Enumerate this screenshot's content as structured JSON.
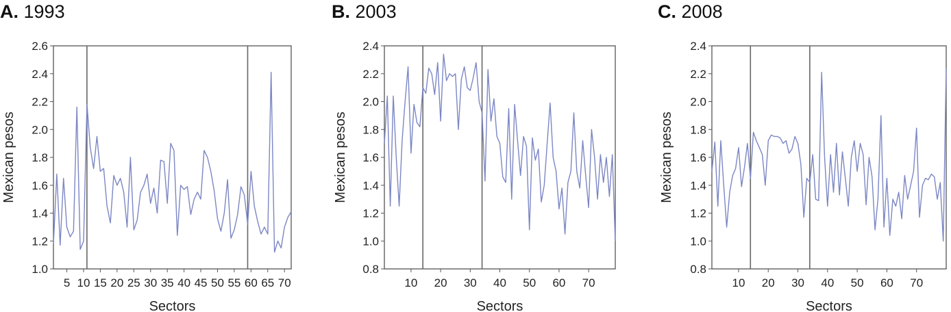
{
  "colors": {
    "series": "#7b86c4",
    "frame": "#555555",
    "divider": "#666666"
  },
  "chart_data": [
    {
      "type": "line",
      "letter": "A.",
      "title": "1993",
      "xlabel": "Sectors",
      "ylabel": "Mexican pesos",
      "xlim": [
        1,
        72
      ],
      "ylim": [
        1.0,
        2.6
      ],
      "yticks": [
        1.0,
        1.2,
        1.4,
        1.6,
        1.8,
        2.0,
        2.2,
        2.4,
        2.6
      ],
      "ytick_labels": [
        "1.0",
        "1.2",
        "1.4",
        "1.6",
        "1.8",
        "2.0",
        "2.2",
        "2.4",
        "2.6"
      ],
      "xticks": [
        5,
        10,
        15,
        20,
        25,
        30,
        35,
        40,
        45,
        50,
        55,
        60,
        65,
        70
      ],
      "xtick_labels": [
        "5",
        "10",
        "15",
        "20",
        "25",
        "30",
        "35",
        "40",
        "45",
        "50",
        "55",
        "60",
        "65",
        "70"
      ],
      "vlines": [
        11,
        59
      ],
      "grid": false,
      "series": [
        {
          "values": [
            1.18,
            1.68,
            1.17,
            1.65,
            1.3,
            1.23,
            1.27,
            2.16,
            1.14,
            1.2,
            2.18,
            1.87,
            1.72,
            1.95,
            1.7,
            1.72,
            1.45,
            1.33,
            1.67,
            1.6,
            1.65,
            1.55,
            1.3,
            1.8,
            1.28,
            1.35,
            1.55,
            1.6,
            1.68,
            1.47,
            1.58,
            1.4,
            1.78,
            1.77,
            1.47,
            1.9,
            1.85,
            1.24,
            1.6,
            1.57,
            1.59,
            1.39,
            1.5,
            1.55,
            1.5,
            1.85,
            1.8,
            1.7,
            1.56,
            1.36,
            1.27,
            1.4,
            1.64,
            1.22,
            1.28,
            1.39,
            1.59,
            1.53,
            1.32,
            1.7,
            1.45,
            1.34,
            1.25,
            1.3,
            1.25,
            2.41,
            1.12,
            1.2,
            1.15,
            1.3,
            1.37,
            1.41
          ]
        }
      ]
    },
    {
      "type": "line",
      "letter": "B.",
      "title": "2003",
      "xlabel": "Sectors",
      "ylabel": "Mexican pesos",
      "xlim": [
        1,
        79
      ],
      "ylim": [
        0.8,
        2.4
      ],
      "yticks": [
        0.8,
        1.0,
        1.2,
        1.4,
        1.6,
        1.8,
        2.0,
        2.2,
        2.4
      ],
      "ytick_labels": [
        "0.8",
        "1.0",
        "1.2",
        "1.4",
        "1.6",
        "1.8",
        "2.0",
        "2.2",
        "2.4"
      ],
      "xticks": [
        10,
        20,
        30,
        40,
        50,
        60,
        70
      ],
      "xtick_labels": [
        "10",
        "20",
        "30",
        "40",
        "50",
        "60",
        "70"
      ],
      "vlines": [
        14,
        34
      ],
      "grid": false,
      "series": [
        {
          "values": [
            1.7,
            2.04,
            1.25,
            2.04,
            1.6,
            1.25,
            1.72,
            2.0,
            2.25,
            1.63,
            1.98,
            1.85,
            1.82,
            2.1,
            2.06,
            2.24,
            2.2,
            2.05,
            2.28,
            1.86,
            2.34,
            2.15,
            2.2,
            2.18,
            2.2,
            1.8,
            2.16,
            2.25,
            2.1,
            2.08,
            2.17,
            2.28,
            2.0,
            1.92,
            1.43,
            2.23,
            1.86,
            2.02,
            1.75,
            1.7,
            1.46,
            1.42,
            1.95,
            1.3,
            1.98,
            1.72,
            1.47,
            1.75,
            1.68,
            1.08,
            1.74,
            1.58,
            1.66,
            1.28,
            1.4,
            1.7,
            1.99,
            1.6,
            1.5,
            1.23,
            1.38,
            1.05,
            1.42,
            1.5,
            1.92,
            1.5,
            1.38,
            1.72,
            1.47,
            1.24,
            1.8,
            1.6,
            1.3,
            1.62,
            1.42,
            1.6,
            1.32,
            1.62,
            1.0
          ]
        }
      ]
    },
    {
      "type": "line",
      "letter": "C.",
      "title": "2008",
      "xlabel": "Sectors",
      "ylabel": "Mexican pesos",
      "xlim": [
        1,
        80
      ],
      "ylim": [
        0.8,
        2.4
      ],
      "yticks": [
        0.8,
        1.0,
        1.2,
        1.4,
        1.6,
        1.8,
        2.0,
        2.2,
        2.4
      ],
      "ytick_labels": [
        "0.8",
        "1.0",
        "1.2",
        "1.4",
        "1.6",
        "1.8",
        "2.0",
        "2.2",
        "2.4"
      ],
      "xticks": [
        10,
        20,
        30,
        40,
        50,
        60,
        70
      ],
      "xtick_labels": [
        "10",
        "20",
        "30",
        "40",
        "50",
        "60",
        "70"
      ],
      "vlines": [
        14,
        34
      ],
      "grid": false,
      "series": [
        {
          "values": [
            1.5,
            1.71,
            1.25,
            1.72,
            1.4,
            1.1,
            1.35,
            1.47,
            1.52,
            1.67,
            1.39,
            1.53,
            1.7,
            1.45,
            1.78,
            1.72,
            1.67,
            1.62,
            1.4,
            1.72,
            1.76,
            1.75,
            1.75,
            1.74,
            1.7,
            1.72,
            1.63,
            1.66,
            1.75,
            1.7,
            1.55,
            1.17,
            1.45,
            1.42,
            1.62,
            1.3,
            1.29,
            2.21,
            1.6,
            1.25,
            1.62,
            1.35,
            1.7,
            1.33,
            1.64,
            1.45,
            1.25,
            1.6,
            1.72,
            1.5,
            1.7,
            1.62,
            1.26,
            1.6,
            1.46,
            1.08,
            1.3,
            1.9,
            1.1,
            1.45,
            1.04,
            1.3,
            1.25,
            1.35,
            1.16,
            1.47,
            1.3,
            1.4,
            1.5,
            1.81,
            1.17,
            1.4,
            1.45,
            1.44,
            1.48,
            1.46,
            1.3,
            1.42,
            1.0,
            2.24
          ]
        }
      ]
    }
  ]
}
